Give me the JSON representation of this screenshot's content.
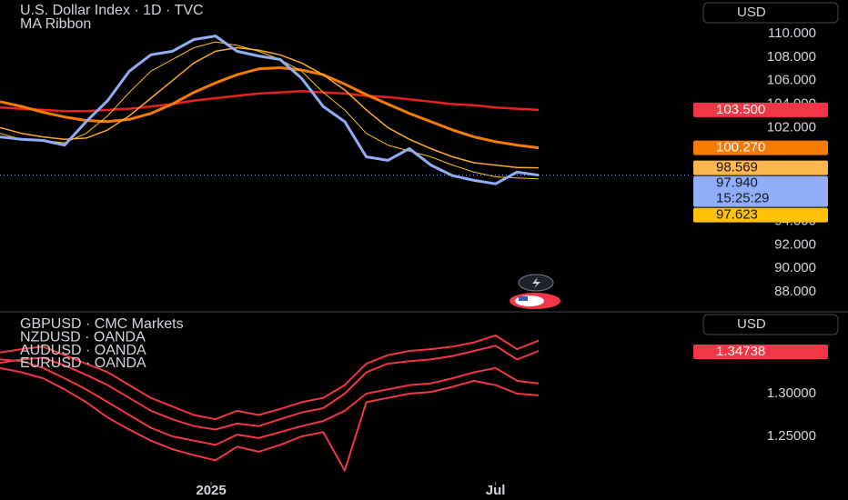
{
  "chart_data": [
    {
      "type": "line",
      "title": "U.S. Dollar Index · 1D · TVC",
      "subtitle": "MA Ribbon",
      "currency": "USD",
      "ylim": [
        86.37,
        112.87
      ],
      "yticks": [
        {
          "value": 88,
          "label": "88.000"
        },
        {
          "value": 90,
          "label": "90.000"
        },
        {
          "value": 92,
          "label": "92.000"
        },
        {
          "value": 94,
          "label": "94.000"
        },
        {
          "value": 102,
          "label": "102.000"
        },
        {
          "value": 104,
          "label": "104.000"
        },
        {
          "value": 106,
          "label": "106.000"
        },
        {
          "value": 108,
          "label": "108.000"
        },
        {
          "value": 110,
          "label": "110.000"
        }
      ],
      "xlim": [
        0,
        25
      ],
      "xticks": [
        {
          "value": 9.8,
          "label": "2025"
        },
        {
          "value": 23,
          "label": "Jul"
        }
      ],
      "x": [
        0,
        1,
        2,
        3,
        4,
        5,
        6,
        7,
        8,
        9,
        10,
        11,
        12,
        13,
        14,
        15,
        16,
        17,
        18,
        19,
        20,
        21,
        22,
        23,
        24,
        25
      ],
      "grid": false,
      "countdown": "15:25:29",
      "series": [
        {
          "color": "#e8211c",
          "width": 2.5,
          "last_label": "103.500",
          "values": [
            103.7,
            103.6,
            103.5,
            103.4,
            103.4,
            103.5,
            103.6,
            103.8,
            104.0,
            104.3,
            104.5,
            104.7,
            104.9,
            105.0,
            105.1,
            105.0,
            104.9,
            104.7,
            104.6,
            104.4,
            104.2,
            104.0,
            103.9,
            103.7,
            103.6,
            103.5
          ]
        },
        {
          "color": "#f57c00",
          "width": 3,
          "last_label": "100.270",
          "values": [
            104.2,
            103.8,
            103.3,
            102.9,
            102.6,
            102.5,
            102.7,
            103.2,
            104.0,
            105.0,
            105.8,
            106.5,
            107.0,
            107.1,
            106.9,
            106.5,
            105.7,
            104.8,
            104.0,
            103.2,
            102.5,
            101.8,
            101.2,
            100.8,
            100.5,
            100.27
          ]
        },
        {
          "color": "#ffa726",
          "width": 1.5,
          "last_label": "98.569",
          "values": [
            102,
            101.5,
            101.2,
            101,
            101.1,
            101.8,
            103,
            104.5,
            106,
            107.5,
            108.5,
            108.8,
            108.6,
            108.2,
            107.5,
            106.5,
            105.2,
            103.5,
            102,
            101,
            100.2,
            99.5,
            99,
            98.8,
            98.6,
            98.569
          ]
        },
        {
          "color": "#ffc107",
          "width": 1,
          "last_label": "97.623",
          "values": [
            101.5,
            101,
            100.9,
            100.7,
            101.5,
            103,
            105,
            106.8,
            107.8,
            108.8,
            109.3,
            109,
            108.5,
            107.8,
            106.8,
            105,
            103.5,
            101.5,
            100.5,
            100,
            99.5,
            98.8,
            98.2,
            97.8,
            97.7,
            97.623
          ]
        },
        {
          "color": "#90aef7",
          "width": 3,
          "last_label": "97.940",
          "current": true,
          "values": [
            101.2,
            101,
            100.9,
            100.5,
            102.5,
            104.3,
            106.8,
            108.2,
            108.5,
            109.5,
            109.8,
            108.5,
            108.1,
            107.8,
            106.2,
            103.8,
            102.5,
            99.5,
            99.2,
            100.2,
            98.8,
            97.9,
            97.5,
            97.2,
            98.2,
            97.94
          ]
        }
      ]
    },
    {
      "type": "line",
      "currency": "USD",
      "ylim": [
        1.1968,
        1.3957
      ],
      "yticks": [
        {
          "value": 1.25,
          "label": "1.25000"
        },
        {
          "value": 1.3,
          "label": "1.30000"
        }
      ],
      "xlim": [
        0,
        25
      ],
      "x": [
        0,
        1,
        2,
        3,
        4,
        5,
        6,
        7,
        8,
        9,
        10,
        11,
        12,
        13,
        14,
        15,
        16,
        17,
        18,
        19,
        20,
        21,
        22,
        23,
        24,
        25
      ],
      "last_label": "1.34738",
      "label_color": "#f23645",
      "series": [
        {
          "name": "GBPUSD · CMC Markets",
          "color": "#f23645",
          "values": [
            1.348,
            1.352,
            1.355,
            1.345,
            1.335,
            1.325,
            1.31,
            1.295,
            1.285,
            1.275,
            1.27,
            1.28,
            1.275,
            1.282,
            1.29,
            1.295,
            1.31,
            1.335,
            1.345,
            1.35,
            1.352,
            1.355,
            1.36,
            1.368,
            1.352,
            1.362
          ]
        },
        {
          "name": "NZDUSD · OANDA",
          "color": "#f23645",
          "values": [
            1.336,
            1.34,
            1.342,
            1.333,
            1.322,
            1.31,
            1.295,
            1.28,
            1.27,
            1.262,
            1.258,
            1.265,
            1.262,
            1.27,
            1.278,
            1.283,
            1.3,
            1.325,
            1.335,
            1.338,
            1.34,
            1.344,
            1.35,
            1.356,
            1.34,
            1.35
          ]
        },
        {
          "name": "AUDUSD · OANDA",
          "color": "#f23645",
          "values": [
            1.34,
            1.338,
            1.33,
            1.318,
            1.305,
            1.29,
            1.275,
            1.26,
            1.25,
            1.245,
            1.24,
            1.252,
            1.248,
            1.255,
            1.262,
            1.268,
            1.28,
            1.3,
            1.305,
            1.31,
            1.312,
            1.318,
            1.325,
            1.33,
            1.315,
            1.312
          ]
        },
        {
          "name": "EURUSD · OANDA",
          "color": "#f23645",
          "values": [
            1.33,
            1.325,
            1.318,
            1.305,
            1.29,
            1.272,
            1.258,
            1.245,
            1.235,
            1.228,
            1.222,
            1.238,
            1.232,
            1.24,
            1.25,
            1.255,
            1.21,
            1.29,
            1.295,
            1.3,
            1.302,
            1.308,
            1.315,
            1.31,
            1.3,
            1.298
          ]
        }
      ]
    }
  ]
}
